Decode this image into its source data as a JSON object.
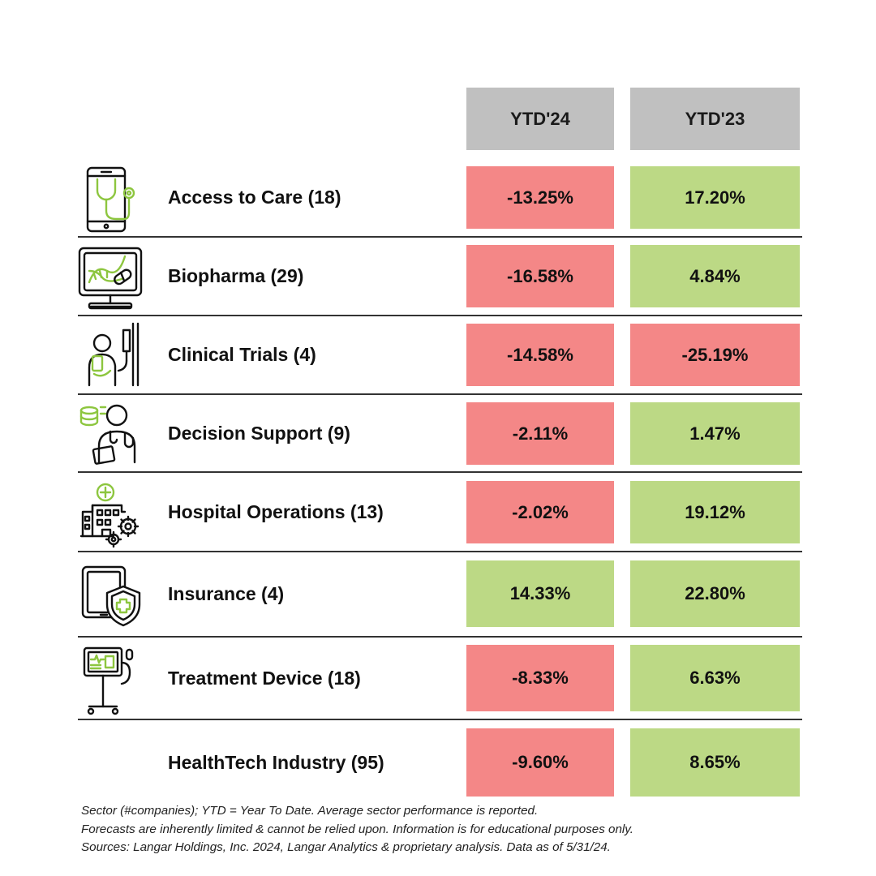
{
  "chart_data": {
    "type": "table",
    "columns": [
      "YTD'24",
      "YTD'23"
    ],
    "rows": [
      {
        "label": "Access to Care (18)",
        "icon": "phone-stethoscope-icon",
        "ytd24": "-13.25%",
        "ytd23": "17.20%",
        "ytd24_sign": "neg",
        "ytd23_sign": "pos"
      },
      {
        "label": "Biopharma (29)",
        "icon": "monitor-dna-pill-icon",
        "ytd24": "-16.58%",
        "ytd23": "4.84%",
        "ytd24_sign": "neg",
        "ytd23_sign": "pos"
      },
      {
        "label": "Clinical Trials (4)",
        "icon": "patient-iv-drip-icon",
        "ytd24": "-14.58%",
        "ytd23": "-25.19%",
        "ytd24_sign": "neg",
        "ytd23_sign": "neg"
      },
      {
        "label": "Decision Support (9)",
        "icon": "doctor-database-icon",
        "ytd24": "-2.11%",
        "ytd23": "1.47%",
        "ytd24_sign": "neg",
        "ytd23_sign": "pos"
      },
      {
        "label": "Hospital Operations (13)",
        "icon": "hospital-gears-icon",
        "ytd24": "-2.02%",
        "ytd23": "19.12%",
        "ytd24_sign": "neg",
        "ytd23_sign": "pos"
      },
      {
        "label": "Insurance (4)",
        "icon": "tablet-shield-icon",
        "ytd24": "14.33%",
        "ytd23": "22.80%",
        "ytd24_sign": "pos",
        "ytd23_sign": "pos"
      },
      {
        "label": "Treatment Device (18)",
        "icon": "medical-monitor-stand-icon",
        "ytd24": "-8.33%",
        "ytd23": "6.63%",
        "ytd24_sign": "neg",
        "ytd23_sign": "pos"
      },
      {
        "label": "HealthTech Industry (95)",
        "icon": "",
        "ytd24": "-9.60%",
        "ytd23": "8.65%",
        "ytd24_sign": "neg",
        "ytd23_sign": "pos"
      }
    ],
    "colors": {
      "negative": "#f48787",
      "positive": "#bcd985",
      "header": "#c0c0c0",
      "icon_accent": "#8dc63f"
    }
  },
  "notes": [
    "Sector (#companies); YTD = Year To Date. Average sector performance is reported.",
    "Forecasts are inherently limited & cannot be relied upon. Information is for educational purposes only.",
    "Sources: Langar Holdings, Inc. 2024, Langar Analytics & proprietary analysis. Data as of  5/31/24."
  ]
}
